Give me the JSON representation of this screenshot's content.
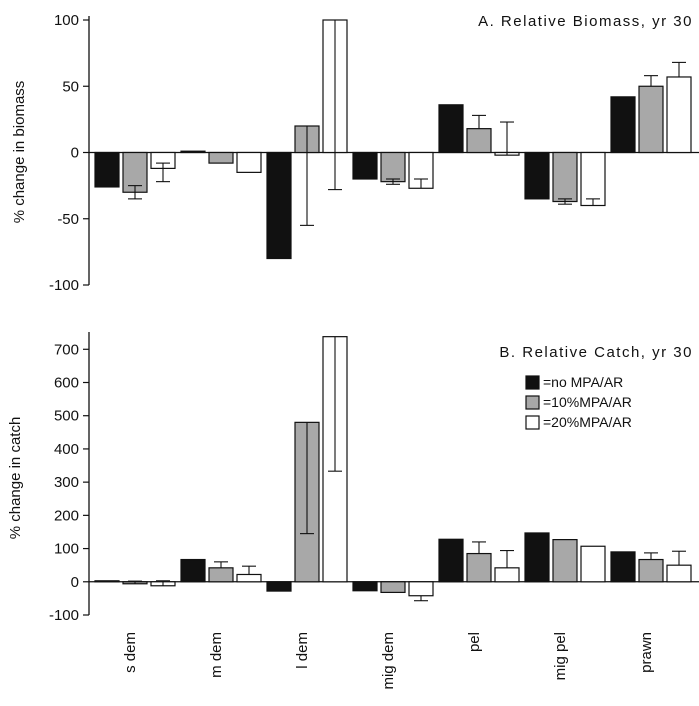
{
  "chart_data": [
    {
      "panel": "A",
      "type": "bar",
      "title": "A. Relative Biomass, yr 30",
      "xlabel": "",
      "ylabel": "% change in biomass",
      "ylim": [
        -100,
        100
      ],
      "yticks": [
        100,
        50,
        0,
        -50,
        -100
      ],
      "ytick_labels": [
        "100",
        "50",
        "0",
        "-50",
        "-100"
      ],
      "categories": [
        "s dem",
        "m dem",
        "l dem",
        "mig dem",
        "pel",
        "mig pel",
        "prawn"
      ],
      "series": [
        {
          "name": "=no MPA/AR",
          "color": "#111111",
          "values": [
            -26,
            1,
            -80,
            -20,
            36,
            -35,
            42
          ],
          "error_up": [
            0,
            0,
            0,
            0,
            0,
            0,
            0
          ],
          "error_down": [
            0,
            0,
            0,
            0,
            0,
            0,
            0
          ]
        },
        {
          "name": "=10%MPA/AR",
          "color": "#a8a8a8",
          "values": [
            -30,
            -8,
            20,
            -22,
            18,
            -37,
            50
          ],
          "error_up": [
            5,
            0,
            0,
            2,
            10,
            2,
            8
          ],
          "error_down": [
            5,
            0,
            75,
            2,
            0,
            2,
            0
          ]
        },
        {
          "name": "=20%MPA/AR",
          "color": "#ffffff",
          "values": [
            -12,
            -15,
            100,
            -27,
            -2,
            -40,
            57
          ],
          "error_up": [
            4,
            0,
            0,
            7,
            25,
            5,
            11
          ],
          "error_down": [
            10,
            0,
            128,
            0,
            0,
            0,
            0
          ]
        }
      ]
    },
    {
      "panel": "B",
      "type": "bar",
      "title": "B. Relative Catch, yr 30",
      "xlabel": "",
      "ylabel": "% change in catch",
      "ylim": [
        -100,
        740
      ],
      "yticks": [
        700,
        600,
        500,
        400,
        300,
        200,
        100,
        0,
        -100
      ],
      "ytick_labels": [
        "700",
        "600",
        "500",
        "400",
        "300",
        "200",
        "100",
        "0",
        "-100"
      ],
      "categories": [
        "s dem",
        "m dem",
        "l dem",
        "mig dem",
        "pel",
        "mig pel",
        "prawn"
      ],
      "series": [
        {
          "name": "=no MPA/AR",
          "color": "#111111",
          "values": [
            3,
            67,
            -28,
            -27,
            128,
            147,
            90
          ],
          "error_up": [
            0,
            0,
            0,
            0,
            0,
            0,
            0
          ],
          "error_down": [
            0,
            0,
            0,
            0,
            0,
            0,
            0
          ]
        },
        {
          "name": "=10%MPA/AR",
          "color": "#a8a8a8",
          "values": [
            -6,
            42,
            480,
            -32,
            85,
            127,
            67
          ],
          "error_up": [
            8,
            18,
            0,
            0,
            35,
            0,
            20
          ],
          "error_down": [
            0,
            0,
            335,
            0,
            0,
            0,
            0
          ]
        },
        {
          "name": "=20%MPA/AR",
          "color": "#ffffff",
          "values": [
            -12,
            22,
            738,
            -42,
            42,
            107,
            50
          ],
          "error_up": [
            15,
            25,
            0,
            0,
            52,
            0,
            42
          ],
          "error_down": [
            0,
            0,
            405,
            15,
            0,
            0,
            0
          ]
        }
      ],
      "legend": {
        "position": "right",
        "entries": [
          "=no MPA/AR",
          "=10%MPA/AR",
          "=20%MPA/AR"
        ]
      }
    }
  ]
}
